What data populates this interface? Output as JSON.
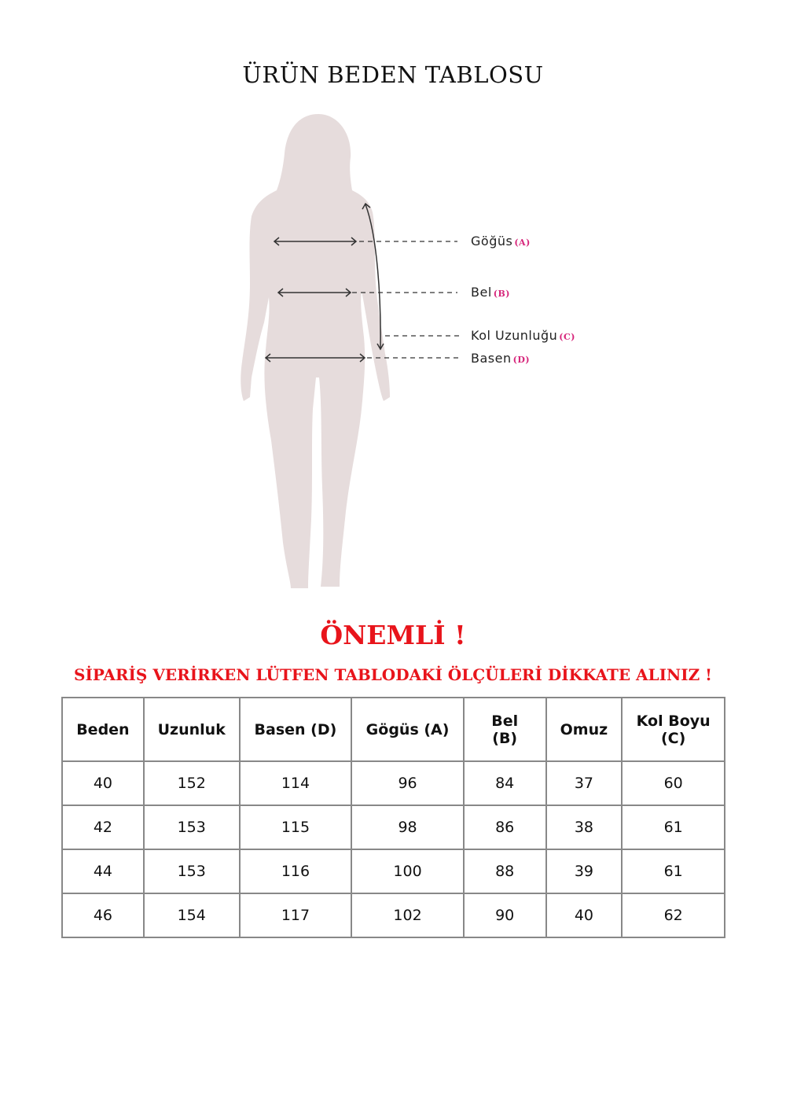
{
  "title": "ÜRÜN BEDEN TABLOSU",
  "figure": {
    "silhouette_color": "#e6dcdc",
    "labels": [
      {
        "name": "Göğüs",
        "code": "(A)"
      },
      {
        "name": "Bel",
        "code": "(B)"
      },
      {
        "name": "Kol Uzunluğu",
        "code": "(C)"
      },
      {
        "name": "Basen",
        "code": "(D)"
      }
    ]
  },
  "notice": {
    "heading": "ÖNEMLİ !",
    "text": "SİPARİŞ VERİRKEN LÜTFEN TABLODAKİ ÖLÇÜLERİ DİKKATE ALINIZ !",
    "color": "#e8141b"
  },
  "table": {
    "headers": [
      "Beden",
      "Uzunluk",
      "Basen (D)",
      "Gögüs (A)",
      "Bel\n(B)",
      "Omuz",
      "Kol Boyu\n(C)"
    ],
    "rows": [
      [
        "40",
        "152",
        "114",
        "96",
        "84",
        "37",
        "60"
      ],
      [
        "42",
        "153",
        "115",
        "98",
        "86",
        "38",
        "61"
      ],
      [
        "44",
        "153",
        "116",
        "100",
        "88",
        "39",
        "61"
      ],
      [
        "46",
        "154",
        "117",
        "102",
        "90",
        "40",
        "62"
      ]
    ]
  }
}
